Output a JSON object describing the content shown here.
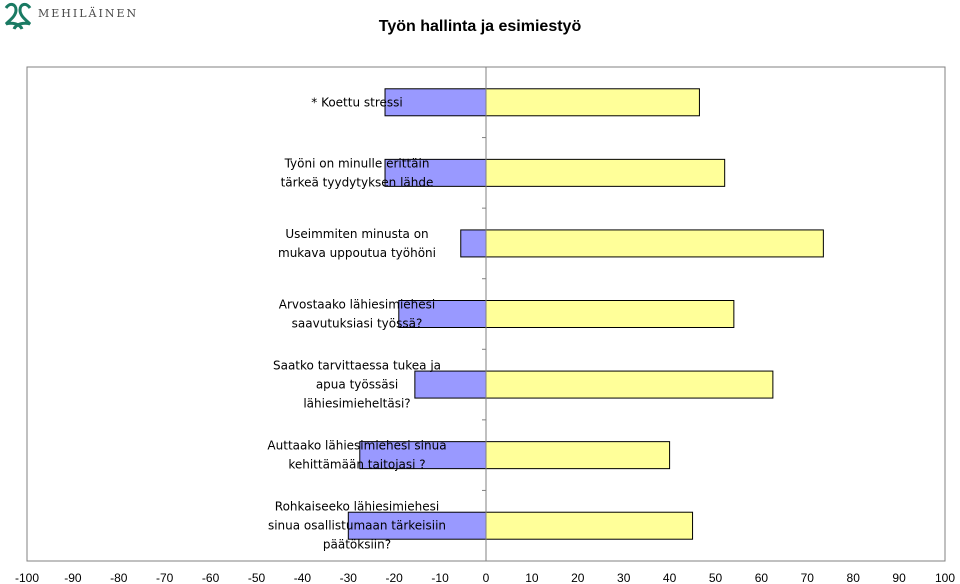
{
  "logo": {
    "text": "MEHILÄINEN",
    "color": "#1a7a63"
  },
  "chart_data": {
    "type": "bar",
    "orientation": "horizontal",
    "title": "Työn hallinta ja esimiestyö",
    "xlabel": "",
    "ylabel": "",
    "xlim": [
      -100,
      100
    ],
    "x_ticks": [
      -100,
      -90,
      -80,
      -70,
      -60,
      -50,
      -40,
      -30,
      -20,
      -10,
      0,
      10,
      20,
      30,
      40,
      50,
      60,
      70,
      80,
      90,
      100
    ],
    "grid": false,
    "legend": "none",
    "categories": [
      [
        "* Koettu stressi"
      ],
      [
        "Työni on minulle erittäin",
        "tärkeä tyydytyksen lähde"
      ],
      [
        "Useimmiten minusta on",
        "mukava uppoutua työhöni"
      ],
      [
        "Arvostaako lähiesimiehesi",
        "saavutuksiasi työssä?"
      ],
      [
        "Saatko tarvittaessa tukea ja",
        "apua työssäsi",
        "lähiesimieheltäsi?"
      ],
      [
        "Auttaako lähiesimiehesi sinua",
        "kehittämään taitojasi ?"
      ],
      [
        "Rohkaiseeko lähiesimiehesi",
        "sinua osallistumaan tärkeisiin",
        "päätöksiin?"
      ]
    ],
    "series": [
      {
        "values": [
          -22,
          -22,
          -5.5,
          -19,
          -15.5,
          -27.5,
          -30
        ],
        "color": "#9999ff"
      },
      {
        "values": [
          46.5,
          52,
          73.5,
          54,
          62.5,
          40,
          45
        ],
        "color": "#ffff99"
      }
    ]
  }
}
